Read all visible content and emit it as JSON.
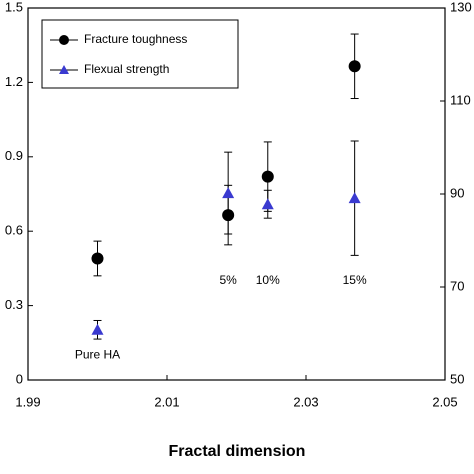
{
  "chart_data": {
    "type": "scatter",
    "xlabel": "Fractal dimension",
    "xlim": [
      1.99,
      2.05
    ],
    "xticks": [
      1.99,
      2.01,
      2.03,
      2.05
    ],
    "ylim": [
      0,
      1.5
    ],
    "yticks": [
      0,
      0.3,
      0.6,
      0.9,
      1.2,
      1.5
    ],
    "y2lim": [
      50,
      130
    ],
    "y2ticks": [
      50,
      70,
      90,
      110,
      130
    ],
    "legend": "upper left",
    "series": [
      {
        "name": "Fracture toughness",
        "color": "#000000",
        "marker": "circle",
        "x": [
          2.0,
          2.0188,
          2.0245,
          2.037
        ],
        "values": [
          0.49,
          0.665,
          0.82,
          1.265
        ],
        "errors": [
          0.07,
          0.12,
          0.14,
          0.13
        ]
      },
      {
        "name": "Flexual strength",
        "color": "#3a3ad0",
        "marker": "triangle",
        "axis": "y2",
        "x": [
          2.0,
          2.0188,
          2.0245,
          2.037
        ],
        "values": [
          60.8,
          90.2,
          87.8,
          89.1
        ],
        "errors": [
          2,
          8.8,
          3,
          12.3
        ]
      }
    ],
    "annotations": [
      {
        "text": "Pure HA",
        "x": 2.0,
        "y": 0.1
      },
      {
        "text": "5%",
        "x": 2.0188,
        "y": 0.4
      },
      {
        "text": "10%",
        "x": 2.0245,
        "y": 0.4
      },
      {
        "text": "15%",
        "x": 2.037,
        "y": 0.4
      }
    ]
  }
}
